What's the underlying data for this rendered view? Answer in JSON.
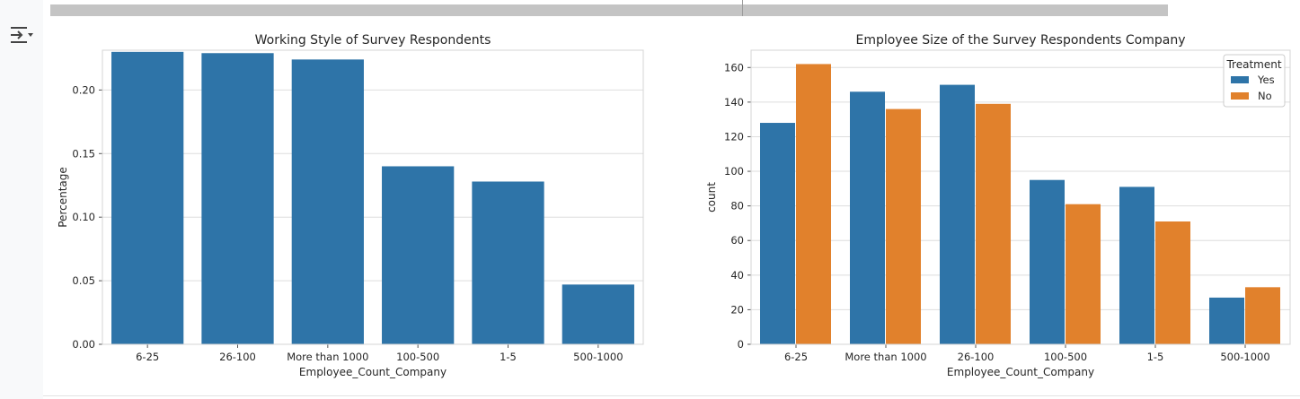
{
  "colors": {
    "blue": "#2e74a8",
    "orange": "#e1812c",
    "grid": "#dedede",
    "frame": "#d4d4d4"
  },
  "toolbar": {
    "output_icon": "output-toggle-icon"
  },
  "chart_data": [
    {
      "type": "bar",
      "title": "Working Style of Survey Respondents",
      "xlabel": "Employee_Count_Company",
      "ylabel": "Percentage",
      "categories": [
        "6-25",
        "26-100",
        "More than 1000",
        "100-500",
        "1-5",
        "500-1000"
      ],
      "values": [
        0.23,
        0.229,
        0.224,
        0.14,
        0.128,
        0.047
      ],
      "ylim": [
        0,
        0.2313
      ],
      "yticks": [
        "0.00",
        "0.05",
        "0.10",
        "0.15",
        "0.20"
      ],
      "ytick_values": [
        0,
        0.05,
        0.1,
        0.15,
        0.2
      ],
      "grid": true,
      "color": "#2e74a8"
    },
    {
      "type": "bar",
      "title": "Employee Size of the Survey Respondents Company",
      "xlabel": "Employee_Count_Company",
      "ylabel": "count",
      "categories": [
        "6-25",
        "More than 1000",
        "26-100",
        "100-500",
        "1-5",
        "500-1000"
      ],
      "series": [
        {
          "name": "Yes",
          "values": [
            128,
            146,
            150,
            95,
            91,
            27
          ],
          "color": "#2e74a8"
        },
        {
          "name": "No",
          "values": [
            162,
            136,
            139,
            81,
            71,
            33
          ],
          "color": "#e1812c"
        }
      ],
      "ylim": [
        0,
        170
      ],
      "yticks": [
        "0",
        "20",
        "40",
        "60",
        "80",
        "100",
        "120",
        "140",
        "160"
      ],
      "ytick_values": [
        0,
        20,
        40,
        60,
        80,
        100,
        120,
        140,
        160
      ],
      "legend_title": "Treatment",
      "legend_position": "top-right",
      "grid": true
    }
  ]
}
